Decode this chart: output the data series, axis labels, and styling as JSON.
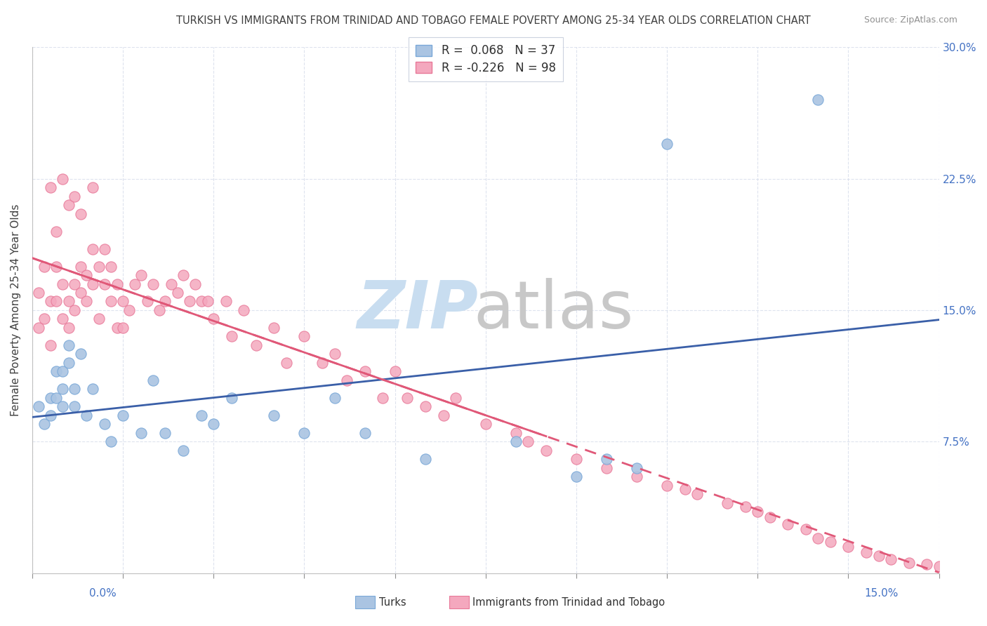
{
  "title": "TURKISH VS IMMIGRANTS FROM TRINIDAD AND TOBAGO FEMALE POVERTY AMONG 25-34 YEAR OLDS CORRELATION CHART",
  "source": "Source: ZipAtlas.com",
  "ylabel": "Female Poverty Among 25-34 Year Olds",
  "xlim": [
    0.0,
    0.15
  ],
  "ylim": [
    0.0,
    0.3
  ],
  "yticks": [
    0.0,
    0.075,
    0.15,
    0.225,
    0.3
  ],
  "ytick_labels": [
    "",
    "7.5%",
    "15.0%",
    "22.5%",
    "30.0%"
  ],
  "xtick_labels_left": "0.0%",
  "xtick_labels_right": "15.0%",
  "legend_label_turks": "R =  0.068   N = 37",
  "legend_label_trin": "R = -0.226   N = 98",
  "turks_color": "#aac4e2",
  "turks_edge_color": "#7aa8d8",
  "turks_line_color": "#3a5fa8",
  "trinidad_color": "#f4a8be",
  "trinidad_edge_color": "#e87898",
  "trinidad_line_color": "#e05878",
  "label_color": "#4472c4",
  "watermark_zip_color": "#c8ddf0",
  "watermark_atlas_color": "#c8c8c8",
  "bottom_legend_turks": "Turks",
  "bottom_legend_trin": "Immigrants from Trinidad and Tobago",
  "turks_x": [
    0.001,
    0.002,
    0.003,
    0.003,
    0.004,
    0.004,
    0.005,
    0.005,
    0.005,
    0.006,
    0.006,
    0.007,
    0.007,
    0.008,
    0.009,
    0.01,
    0.012,
    0.013,
    0.015,
    0.018,
    0.02,
    0.022,
    0.025,
    0.028,
    0.03,
    0.033,
    0.04,
    0.045,
    0.05,
    0.055,
    0.065,
    0.08,
    0.09,
    0.095,
    0.1,
    0.105,
    0.13
  ],
  "turks_y": [
    0.095,
    0.085,
    0.1,
    0.09,
    0.115,
    0.1,
    0.115,
    0.105,
    0.095,
    0.13,
    0.12,
    0.105,
    0.095,
    0.125,
    0.09,
    0.105,
    0.085,
    0.075,
    0.09,
    0.08,
    0.11,
    0.08,
    0.07,
    0.09,
    0.085,
    0.1,
    0.09,
    0.08,
    0.1,
    0.08,
    0.065,
    0.075,
    0.055,
    0.065,
    0.06,
    0.245,
    0.27
  ],
  "trinidad_x": [
    0.001,
    0.001,
    0.002,
    0.002,
    0.003,
    0.003,
    0.003,
    0.004,
    0.004,
    0.004,
    0.005,
    0.005,
    0.005,
    0.006,
    0.006,
    0.006,
    0.007,
    0.007,
    0.007,
    0.008,
    0.008,
    0.008,
    0.009,
    0.009,
    0.01,
    0.01,
    0.01,
    0.011,
    0.011,
    0.012,
    0.012,
    0.013,
    0.013,
    0.014,
    0.014,
    0.015,
    0.015,
    0.016,
    0.017,
    0.018,
    0.019,
    0.02,
    0.021,
    0.022,
    0.023,
    0.024,
    0.025,
    0.026,
    0.027,
    0.028,
    0.029,
    0.03,
    0.032,
    0.033,
    0.035,
    0.037,
    0.04,
    0.042,
    0.045,
    0.048,
    0.05,
    0.052,
    0.055,
    0.058,
    0.06,
    0.062,
    0.065,
    0.068,
    0.07,
    0.075,
    0.08,
    0.082,
    0.085,
    0.09,
    0.095,
    0.1,
    0.105,
    0.108,
    0.11,
    0.115,
    0.118,
    0.12,
    0.122,
    0.125,
    0.128,
    0.13,
    0.132,
    0.135,
    0.138,
    0.14,
    0.142,
    0.145,
    0.148,
    0.15,
    0.152,
    0.155,
    0.158,
    0.16
  ],
  "trinidad_y": [
    0.14,
    0.16,
    0.145,
    0.175,
    0.13,
    0.155,
    0.22,
    0.155,
    0.175,
    0.195,
    0.145,
    0.165,
    0.225,
    0.14,
    0.155,
    0.21,
    0.15,
    0.165,
    0.215,
    0.16,
    0.175,
    0.205,
    0.155,
    0.17,
    0.165,
    0.185,
    0.22,
    0.145,
    0.175,
    0.165,
    0.185,
    0.155,
    0.175,
    0.14,
    0.165,
    0.14,
    0.155,
    0.15,
    0.165,
    0.17,
    0.155,
    0.165,
    0.15,
    0.155,
    0.165,
    0.16,
    0.17,
    0.155,
    0.165,
    0.155,
    0.155,
    0.145,
    0.155,
    0.135,
    0.15,
    0.13,
    0.14,
    0.12,
    0.135,
    0.12,
    0.125,
    0.11,
    0.115,
    0.1,
    0.115,
    0.1,
    0.095,
    0.09,
    0.1,
    0.085,
    0.08,
    0.075,
    0.07,
    0.065,
    0.06,
    0.055,
    0.05,
    0.048,
    0.045,
    0.04,
    0.038,
    0.035,
    0.032,
    0.028,
    0.025,
    0.02,
    0.018,
    0.015,
    0.012,
    0.01,
    0.008,
    0.006,
    0.005,
    0.004,
    0.003,
    0.002,
    0.001,
    0.001
  ]
}
